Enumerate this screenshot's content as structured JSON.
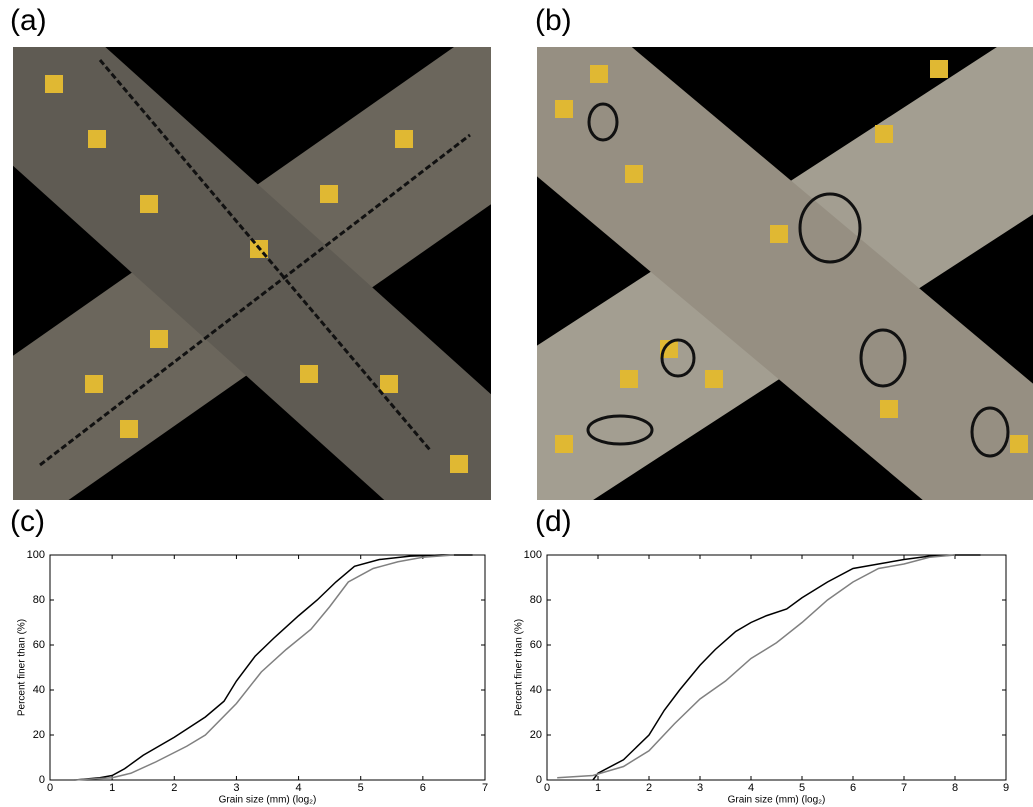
{
  "panel_labels": [
    "(a)",
    "(b)",
    "(c)",
    "(d)"
  ],
  "chart_data": [
    {
      "type": "line",
      "xlabel": "Grain size (mm) (log₂)",
      "ylabel": "Percent finer than (%)",
      "xlim": [
        0,
        7
      ],
      "ylim": [
        0,
        100
      ],
      "xticks": [
        0,
        1,
        2,
        3,
        4,
        5,
        6,
        7
      ],
      "yticks": [
        0,
        20,
        40,
        60,
        80,
        100
      ],
      "series": [
        {
          "color": "#000000",
          "x": [
            0.4,
            0.8,
            1.0,
            1.2,
            1.5,
            2.0,
            2.5,
            2.8,
            3.0,
            3.3,
            3.6,
            4.0,
            4.3,
            4.6,
            4.9,
            5.3,
            5.8,
            6.3,
            6.8
          ],
          "values": [
            0,
            1,
            2,
            5,
            11,
            19,
            28,
            35,
            44,
            55,
            63,
            73,
            80,
            88,
            95,
            98,
            99.5,
            100,
            100
          ]
        },
        {
          "color": "#808080",
          "x": [
            0.4,
            1.0,
            1.3,
            1.7,
            2.2,
            2.5,
            3.0,
            3.4,
            3.8,
            4.2,
            4.5,
            4.8,
            5.2,
            5.6,
            6.0,
            6.5
          ],
          "values": [
            0,
            1,
            3,
            8,
            15,
            20,
            34,
            48,
            58,
            67,
            77,
            88,
            94,
            97,
            99,
            100
          ]
        }
      ]
    },
    {
      "type": "line",
      "xlabel": "Grain size (mm) (log₂)",
      "ylabel": "Percent finer than (%)",
      "xlim": [
        0,
        9
      ],
      "ylim": [
        0,
        100
      ],
      "xticks": [
        0,
        1,
        2,
        3,
        4,
        5,
        6,
        7,
        8,
        9
      ],
      "yticks": [
        0,
        20,
        40,
        60,
        80,
        100
      ],
      "series": [
        {
          "color": "#000000",
          "x": [
            0.9,
            1.0,
            1.5,
            2.0,
            2.3,
            2.6,
            3.0,
            3.3,
            3.7,
            4.0,
            4.3,
            4.7,
            5.0,
            5.5,
            6.0,
            6.5,
            7.0,
            7.5,
            8.0,
            8.5
          ],
          "values": [
            0,
            3,
            9,
            20,
            31,
            40,
            51,
            58,
            66,
            70,
            73,
            76,
            81,
            88,
            94,
            96,
            98,
            99.5,
            100,
            100
          ]
        },
        {
          "color": "#808080",
          "x": [
            0.2,
            0.9,
            1.5,
            2.0,
            2.5,
            3.0,
            3.5,
            4.0,
            4.5,
            5.0,
            5.5,
            6.0,
            6.5,
            7.0,
            7.5,
            8.0
          ],
          "values": [
            1,
            2,
            6,
            13,
            25,
            36,
            44,
            54,
            61,
            70,
            80,
            88,
            94,
            96,
            99,
            100
          ]
        }
      ]
    }
  ]
}
